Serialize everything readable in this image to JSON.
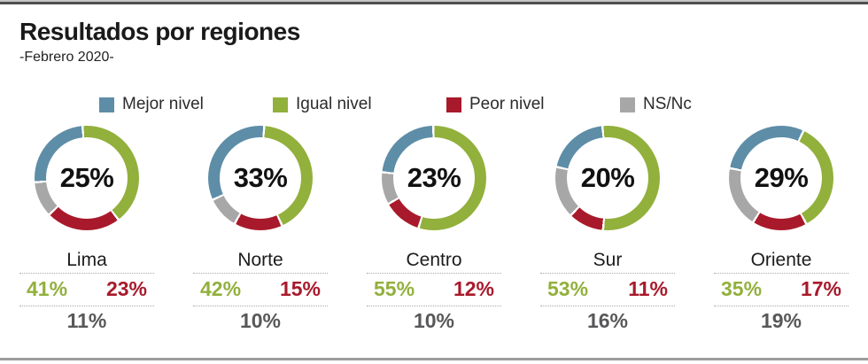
{
  "header": {
    "title": "Resultados por regiones",
    "subtitle": "-Febrero 2020-"
  },
  "colors": {
    "mejor": "#5e8da7",
    "igual": "#92b03c",
    "peor": "#a81a2b",
    "nsnc": "#a7a7a7",
    "nsnc_text": "#58585a"
  },
  "legend": [
    {
      "key": "mejor",
      "label": "Mejor nivel",
      "color": "#5e8da7"
    },
    {
      "key": "igual",
      "label": "Igual nivel",
      "color": "#92b03c"
    },
    {
      "key": "peor",
      "label": "Peor nivel",
      "color": "#a81a2b"
    },
    {
      "key": "nsnc",
      "label": "NS/Nc",
      "color": "#a7a7a7"
    }
  ],
  "regions": [
    {
      "name": "Lima",
      "rotation": -6,
      "values": {
        "mejor": 25,
        "igual": 41,
        "peor": 23,
        "nsnc": 11
      },
      "labels": {
        "mejor": "25%",
        "igual": "41%",
        "peor": "23%",
        "nsnc": "11%"
      }
    },
    {
      "name": "Norte",
      "rotation": 3,
      "values": {
        "mejor": 33,
        "igual": 42,
        "peor": 15,
        "nsnc": 10
      },
      "labels": {
        "mejor": "33%",
        "igual": "42%",
        "peor": "15%",
        "nsnc": "10%"
      }
    },
    {
      "name": "Centro",
      "rotation": -2,
      "values": {
        "mejor": 23,
        "igual": 55,
        "peor": 12,
        "nsnc": 10
      },
      "labels": {
        "mejor": "23%",
        "igual": "55%",
        "peor": "12%",
        "nsnc": "10%"
      }
    },
    {
      "name": "Sur",
      "rotation": -7,
      "values": {
        "mejor": 20,
        "igual": 53,
        "peor": 11,
        "nsnc": 16
      },
      "labels": {
        "mejor": "20%",
        "igual": "53%",
        "peor": "11%",
        "nsnc": "16%"
      }
    },
    {
      "name": "Oriente",
      "rotation": 24,
      "values": {
        "mejor": 29,
        "igual": 35,
        "peor": 17,
        "nsnc": 19
      },
      "labels": {
        "mejor": "29%",
        "igual": "35%",
        "peor": "17%",
        "nsnc": "19%"
      }
    }
  ],
  "chart_data": [
    {
      "type": "pie",
      "title": "Lima",
      "labels": [
        "Mejor nivel",
        "Igual nivel",
        "Peor nivel",
        "NS/Nc"
      ],
      "values": [
        25,
        41,
        23,
        11
      ],
      "center_label": "25%",
      "colors": [
        "#5e8da7",
        "#92b03c",
        "#a81a2b",
        "#a7a7a7"
      ],
      "legend_position": "top",
      "donut": true
    },
    {
      "type": "pie",
      "title": "Norte",
      "labels": [
        "Mejor nivel",
        "Igual nivel",
        "Peor nivel",
        "NS/Nc"
      ],
      "values": [
        33,
        42,
        15,
        10
      ],
      "center_label": "33%",
      "colors": [
        "#5e8da7",
        "#92b03c",
        "#a81a2b",
        "#a7a7a7"
      ],
      "legend_position": "top",
      "donut": true
    },
    {
      "type": "pie",
      "title": "Centro",
      "labels": [
        "Mejor nivel",
        "Igual nivel",
        "Peor nivel",
        "NS/Nc"
      ],
      "values": [
        23,
        55,
        12,
        10
      ],
      "center_label": "23%",
      "colors": [
        "#5e8da7",
        "#92b03c",
        "#a81a2b",
        "#a7a7a7"
      ],
      "legend_position": "top",
      "donut": true
    },
    {
      "type": "pie",
      "title": "Sur",
      "labels": [
        "Mejor nivel",
        "Igual nivel",
        "Peor nivel",
        "NS/Nc"
      ],
      "values": [
        20,
        53,
        11,
        16
      ],
      "center_label": "20%",
      "colors": [
        "#5e8da7",
        "#92b03c",
        "#a81a2b",
        "#a7a7a7"
      ],
      "legend_position": "top",
      "donut": true
    },
    {
      "type": "pie",
      "title": "Oriente",
      "labels": [
        "Mejor nivel",
        "Igual nivel",
        "Peor nivel",
        "NS/Nc"
      ],
      "values": [
        29,
        35,
        17,
        19
      ],
      "center_label": "29%",
      "colors": [
        "#5e8da7",
        "#92b03c",
        "#a81a2b",
        "#a7a7a7"
      ],
      "legend_position": "top",
      "donut": true
    }
  ]
}
